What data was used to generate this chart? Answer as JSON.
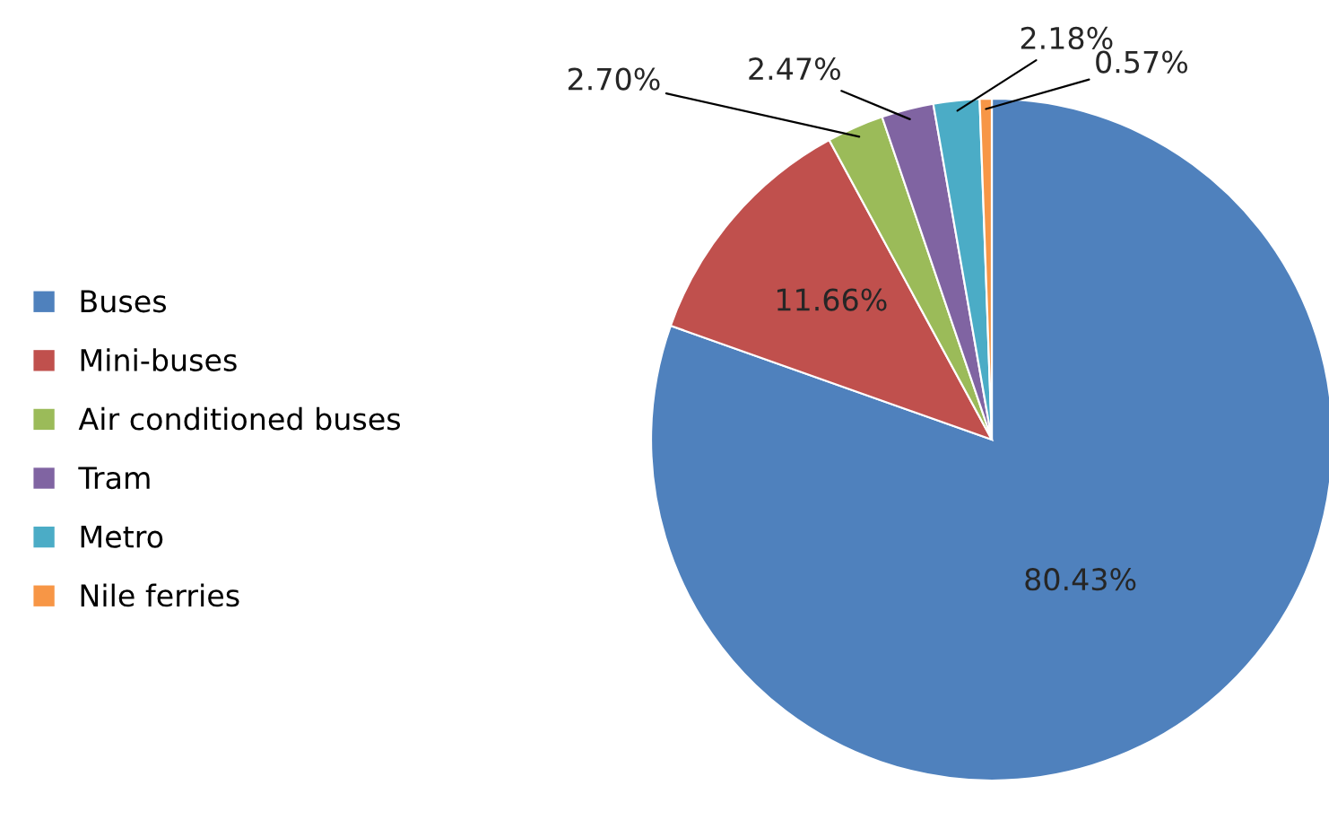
{
  "chart_data": {
    "type": "pie",
    "categories": [
      "Buses",
      "Mini-buses",
      "Air conditioned buses",
      "Tram",
      "Metro",
      "Nile ferries"
    ],
    "values": [
      80.43,
      11.66,
      2.7,
      2.47,
      2.18,
      0.57
    ],
    "colors": [
      "#4f81bd",
      "#c0504d",
      "#9bbb59",
      "#8064a2",
      "#4bacc6",
      "#f79646"
    ],
    "value_labels": [
      "80.43%",
      "11.66%",
      "2.70%",
      "2.47%",
      "2.18%",
      "0.57%"
    ],
    "legend": "left"
  }
}
